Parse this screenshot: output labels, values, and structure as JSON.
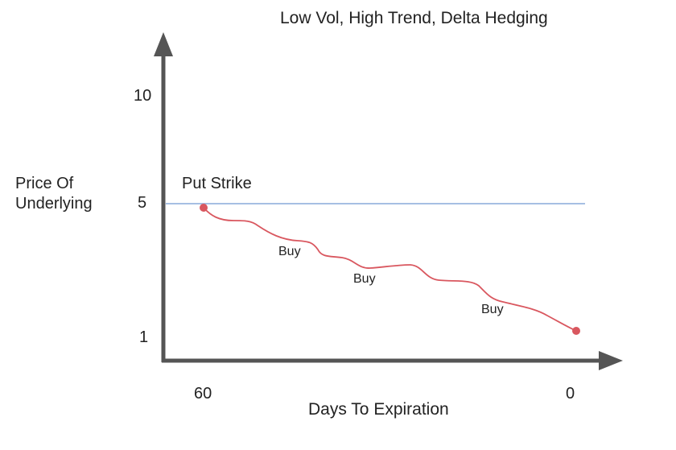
{
  "title": "Low Vol, High Trend, Delta Hedging",
  "y_axis": {
    "label_lines": [
      "Price Of",
      "Underlying"
    ],
    "ticks": [
      "10",
      "5",
      "1"
    ]
  },
  "x_axis": {
    "label": "Days To Expiration",
    "ticks": [
      "60",
      "0"
    ]
  },
  "strike_label": "Put Strike",
  "buy_labels": [
    "Buy",
    "Buy",
    "Buy"
  ],
  "colors": {
    "axis": "#555555",
    "strike_line": "#a6bfe3",
    "price_path": "#d9575f",
    "text": "#222222"
  }
}
